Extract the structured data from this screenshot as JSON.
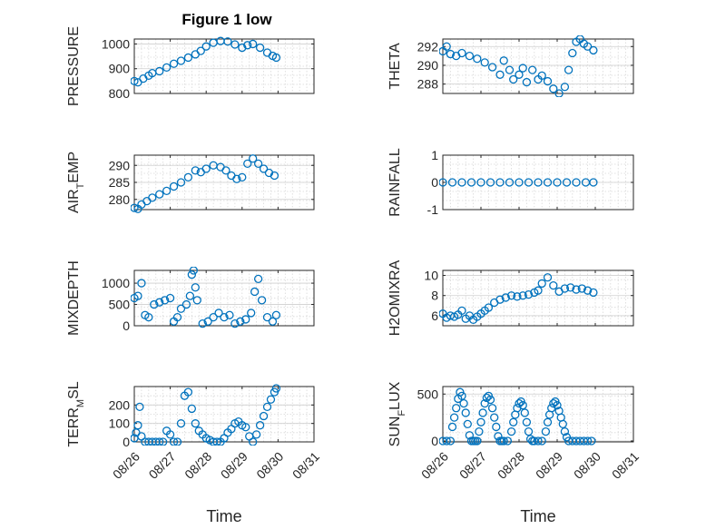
{
  "figure": {
    "title": "Figure 1 low"
  },
  "colors": {
    "marker": "#0072BD",
    "axis": "#262626",
    "grid": "#d8d8d8"
  },
  "chart_data": [
    {
      "id": "pressure",
      "type": "scatter",
      "marker": "circle",
      "ylabel": "PRESSURE",
      "ylim": [
        800,
        1020
      ],
      "yticks": [
        800,
        900,
        1000
      ],
      "xlim": [
        0,
        5
      ],
      "xticks": [
        0,
        1,
        2,
        3,
        4,
        5
      ],
      "xticklabels": [
        "08/26",
        "08/27",
        "08/28",
        "08/29",
        "08/30",
        "08/31"
      ],
      "xlabel": "",
      "grid": true,
      "x": [
        0.0,
        0.1,
        0.25,
        0.4,
        0.5,
        0.7,
        0.9,
        1.1,
        1.3,
        1.5,
        1.7,
        1.85,
        2.0,
        2.2,
        2.4,
        2.6,
        2.8,
        3.0,
        3.15,
        3.3,
        3.5,
        3.7,
        3.85,
        3.95
      ],
      "y": [
        850,
        845,
        860,
        872,
        882,
        890,
        905,
        920,
        932,
        945,
        958,
        972,
        990,
        1005,
        1012,
        1010,
        998,
        985,
        995,
        1000,
        985,
        965,
        952,
        945
      ]
    },
    {
      "id": "theta",
      "type": "scatter",
      "marker": "circle",
      "ylabel": "THETA",
      "ylim": [
        287,
        292.8
      ],
      "yticks": [
        288,
        290,
        292
      ],
      "xlim": [
        0,
        5
      ],
      "xticks": [
        0,
        1,
        2,
        3,
        4,
        5
      ],
      "xticklabels": [
        "08/26",
        "08/27",
        "08/28",
        "08/29",
        "08/30",
        "08/31"
      ],
      "xlabel": "",
      "grid": true,
      "x": [
        0.0,
        0.1,
        0.2,
        0.35,
        0.5,
        0.7,
        0.9,
        1.1,
        1.3,
        1.5,
        1.6,
        1.75,
        1.85,
        2.0,
        2.1,
        2.2,
        2.35,
        2.5,
        2.6,
        2.75,
        2.9,
        3.05,
        3.2,
        3.3,
        3.4,
        3.5,
        3.6,
        3.7,
        3.8,
        3.95
      ],
      "y": [
        291.5,
        292.0,
        291.2,
        291.0,
        291.3,
        291.0,
        290.7,
        290.3,
        289.8,
        289.0,
        290.5,
        289.5,
        288.5,
        289.0,
        289.7,
        288.2,
        289.5,
        288.5,
        288.9,
        288.3,
        287.5,
        287.0,
        287.7,
        289.5,
        291.3,
        292.5,
        292.8,
        292.3,
        292.0,
        291.6
      ]
    },
    {
      "id": "air_temp",
      "type": "scatter",
      "marker": "circle",
      "ylabel": "AIR",
      "ylabel_sub": "T",
      "ylabel_tail": "EMP",
      "ylim": [
        277,
        293
      ],
      "yticks": [
        280,
        285,
        290
      ],
      "xlim": [
        0,
        5
      ],
      "xticks": [
        0,
        1,
        2,
        3,
        4,
        5
      ],
      "xticklabels": [
        "08/26",
        "08/27",
        "08/28",
        "08/29",
        "08/30",
        "08/31"
      ],
      "xlabel": "",
      "grid": true,
      "x": [
        0.0,
        0.1,
        0.2,
        0.35,
        0.5,
        0.7,
        0.9,
        1.1,
        1.3,
        1.5,
        1.7,
        1.85,
        2.0,
        2.2,
        2.4,
        2.55,
        2.7,
        2.85,
        3.0,
        3.15,
        3.3,
        3.45,
        3.6,
        3.75,
        3.9
      ],
      "y": [
        277.5,
        277.2,
        278.5,
        279.5,
        280.5,
        281.5,
        282.5,
        283.8,
        285.0,
        286.5,
        288.5,
        288.0,
        289.0,
        290.0,
        289.5,
        288.5,
        287.0,
        286.0,
        286.5,
        290.5,
        292.0,
        290.5,
        289.0,
        287.8,
        287.0
      ]
    },
    {
      "id": "rainfall",
      "type": "scatter",
      "marker": "circle",
      "ylabel": "RAINFALL",
      "ylim": [
        -1,
        1
      ],
      "yticks": [
        -1,
        0,
        1
      ],
      "xlim": [
        0,
        5
      ],
      "xticks": [
        0,
        1,
        2,
        3,
        4,
        5
      ],
      "xticklabels": [
        "08/26",
        "08/27",
        "08/28",
        "08/29",
        "08/30",
        "08/31"
      ],
      "xlabel": "",
      "grid": true,
      "x": [
        0.0,
        0.25,
        0.5,
        0.75,
        1.0,
        1.25,
        1.5,
        1.75,
        2.0,
        2.25,
        2.5,
        2.75,
        3.0,
        3.25,
        3.5,
        3.75,
        3.95
      ],
      "y": [
        0,
        0,
        0,
        0,
        0,
        0,
        0,
        0,
        0,
        0,
        0,
        0,
        0,
        0,
        0,
        0,
        0
      ]
    },
    {
      "id": "mixdepth",
      "type": "scatter",
      "marker": "circle",
      "ylabel": "MIXDEPTH",
      "ylim": [
        0,
        1300
      ],
      "yticks": [
        0,
        500,
        1000
      ],
      "xlim": [
        0,
        5
      ],
      "xticks": [
        0,
        1,
        2,
        3,
        4,
        5
      ],
      "xticklabels": [
        "08/26",
        "08/27",
        "08/28",
        "08/29",
        "08/30",
        "08/31"
      ],
      "xlabel": "",
      "grid": true,
      "x": [
        0.0,
        0.1,
        0.2,
        0.3,
        0.4,
        0.55,
        0.7,
        0.85,
        1.0,
        1.1,
        1.2,
        1.3,
        1.45,
        1.55,
        1.6,
        1.65,
        1.7,
        1.75,
        1.9,
        2.05,
        2.2,
        2.35,
        2.5,
        2.65,
        2.8,
        2.95,
        3.1,
        3.25,
        3.35,
        3.45,
        3.55,
        3.7,
        3.85,
        3.95
      ],
      "y": [
        650,
        700,
        1000,
        250,
        200,
        500,
        550,
        600,
        650,
        100,
        200,
        400,
        500,
        700,
        1200,
        1300,
        900,
        600,
        50,
        100,
        200,
        300,
        200,
        250,
        50,
        100,
        150,
        300,
        800,
        1100,
        600,
        200,
        100,
        250
      ]
    },
    {
      "id": "h2omixra",
      "type": "scatter",
      "marker": "circle",
      "ylabel": "H2OMIXRA",
      "ylim": [
        5,
        10.5
      ],
      "yticks": [
        6,
        8,
        10
      ],
      "xlim": [
        0,
        5
      ],
      "xticks": [
        0,
        1,
        2,
        3,
        4,
        5
      ],
      "xticklabels": [
        "08/26",
        "08/27",
        "08/28",
        "08/29",
        "08/30",
        "08/31"
      ],
      "xlabel": "",
      "grid": true,
      "x": [
        0.0,
        0.1,
        0.2,
        0.3,
        0.4,
        0.5,
        0.6,
        0.7,
        0.8,
        0.9,
        1.0,
        1.1,
        1.2,
        1.35,
        1.5,
        1.65,
        1.8,
        1.95,
        2.1,
        2.25,
        2.4,
        2.5,
        2.6,
        2.75,
        2.9,
        3.05,
        3.2,
        3.35,
        3.5,
        3.65,
        3.8,
        3.95
      ],
      "y": [
        6.2,
        5.8,
        6.0,
        5.9,
        6.1,
        6.5,
        5.7,
        6.0,
        5.6,
        5.9,
        6.2,
        6.5,
        6.8,
        7.3,
        7.6,
        7.8,
        8.0,
        7.9,
        8.0,
        8.1,
        8.3,
        8.5,
        9.2,
        9.8,
        9.0,
        8.4,
        8.7,
        8.8,
        8.6,
        8.7,
        8.5,
        8.3
      ]
    },
    {
      "id": "terr_msl",
      "type": "scatter",
      "marker": "circle",
      "ylabel": "TERR",
      "ylabel_sub": "M",
      "ylabel_tail": "SL",
      "ylim": [
        0,
        300
      ],
      "yticks": [
        0,
        100,
        200
      ],
      "xlim": [
        0,
        5
      ],
      "xticks": [
        0,
        1,
        2,
        3,
        4,
        5
      ],
      "xticklabels": [
        "08/26",
        "08/27",
        "08/28",
        "08/29",
        "08/30",
        "08/31"
      ],
      "xlabel": "Time",
      "grid": true,
      "x": [
        0.0,
        0.05,
        0.1,
        0.15,
        0.2,
        0.3,
        0.4,
        0.5,
        0.6,
        0.7,
        0.8,
        0.9,
        1.0,
        1.1,
        1.2,
        1.3,
        1.4,
        1.5,
        1.6,
        1.7,
        1.8,
        1.9,
        2.0,
        2.1,
        2.2,
        2.3,
        2.4,
        2.5,
        2.6,
        2.7,
        2.8,
        2.9,
        3.0,
        3.1,
        3.2,
        3.3,
        3.4,
        3.5,
        3.6,
        3.7,
        3.8,
        3.9,
        3.95
      ],
      "y": [
        20,
        50,
        90,
        190,
        30,
        0,
        0,
        0,
        0,
        0,
        0,
        60,
        40,
        0,
        0,
        100,
        250,
        270,
        180,
        100,
        60,
        40,
        20,
        10,
        0,
        0,
        0,
        20,
        50,
        70,
        100,
        110,
        90,
        80,
        30,
        0,
        40,
        90,
        140,
        190,
        230,
        270,
        290
      ]
    },
    {
      "id": "sun_flux",
      "type": "scatter",
      "marker": "circle",
      "ylabel": "SUN",
      "ylabel_sub": "F",
      "ylabel_tail": "LUX",
      "ylim": [
        -10,
        580
      ],
      "yticks": [
        0,
        500
      ],
      "xlim": [
        0,
        5
      ],
      "xticks": [
        0,
        1,
        2,
        3,
        4,
        5
      ],
      "xticklabels": [
        "08/26",
        "08/27",
        "08/28",
        "08/29",
        "08/30",
        "08/31"
      ],
      "xlabel": "Time",
      "grid": true,
      "x": [
        0.0,
        0.1,
        0.2,
        0.25,
        0.3,
        0.35,
        0.4,
        0.45,
        0.5,
        0.55,
        0.6,
        0.65,
        0.7,
        0.75,
        0.8,
        0.85,
        0.9,
        0.95,
        1.0,
        1.05,
        1.1,
        1.15,
        1.2,
        1.25,
        1.3,
        1.35,
        1.4,
        1.45,
        1.5,
        1.55,
        1.6,
        1.7,
        1.8,
        1.85,
        1.9,
        1.95,
        2.0,
        2.05,
        2.1,
        2.15,
        2.2,
        2.25,
        2.3,
        2.35,
        2.4,
        2.5,
        2.6,
        2.7,
        2.75,
        2.8,
        2.85,
        2.9,
        2.95,
        3.0,
        3.05,
        3.1,
        3.15,
        3.2,
        3.25,
        3.3,
        3.4,
        3.5,
        3.6,
        3.7,
        3.8,
        3.9
      ],
      "y": [
        0,
        0,
        0,
        150,
        250,
        350,
        450,
        520,
        480,
        400,
        300,
        180,
        60,
        0,
        0,
        0,
        0,
        100,
        200,
        300,
        400,
        460,
        480,
        440,
        350,
        250,
        150,
        50,
        0,
        0,
        0,
        0,
        100,
        200,
        280,
        350,
        400,
        420,
        380,
        300,
        200,
        100,
        20,
        0,
        0,
        0,
        0,
        100,
        200,
        280,
        350,
        400,
        420,
        380,
        320,
        250,
        180,
        100,
        40,
        0,
        0,
        0,
        0,
        0,
        0,
        0
      ]
    }
  ]
}
